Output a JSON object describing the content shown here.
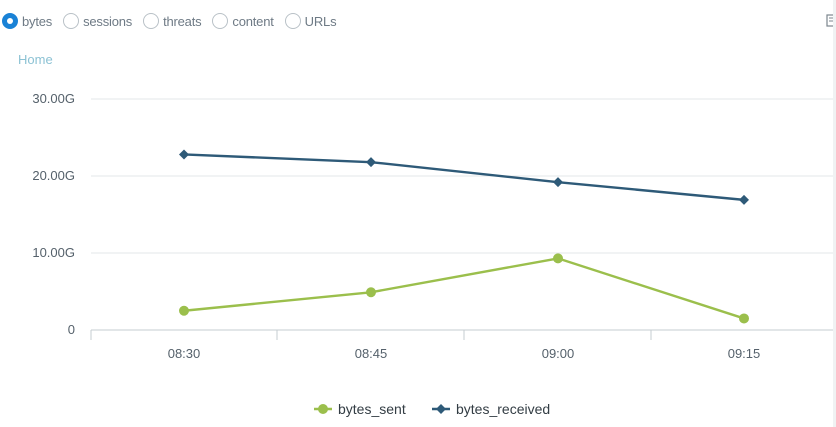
{
  "radio_tabs": [
    {
      "label": "bytes",
      "selected": true
    },
    {
      "label": "sessions",
      "selected": false
    },
    {
      "label": "threats",
      "selected": false
    },
    {
      "label": "content",
      "selected": false
    },
    {
      "label": "URLs",
      "selected": false
    }
  ],
  "breadcrumb": "Home",
  "corner_icon": "expand-icon",
  "colors": {
    "bytes_sent": "#9bbf4c",
    "bytes_received": "#2e5a78",
    "accent": "#1a82d6"
  },
  "chart_data": {
    "type": "line",
    "title": "",
    "xlabel": "",
    "ylabel": "",
    "categories": [
      "08:30",
      "08:45",
      "09:00",
      "09:15"
    ],
    "ylim": [
      0,
      30
    ],
    "yticks": [
      0,
      10,
      20,
      30
    ],
    "ytick_labels": [
      "0",
      "10.00G",
      "20.00G",
      "30.00G"
    ],
    "grid": true,
    "legend_position": "bottom-center",
    "series": [
      {
        "name": "bytes_sent",
        "marker": "circle",
        "values": [
          2.5,
          4.9,
          9.3,
          1.5
        ]
      },
      {
        "name": "bytes_received",
        "marker": "diamond",
        "values": [
          22.8,
          21.8,
          19.2,
          16.9
        ]
      }
    ]
  }
}
